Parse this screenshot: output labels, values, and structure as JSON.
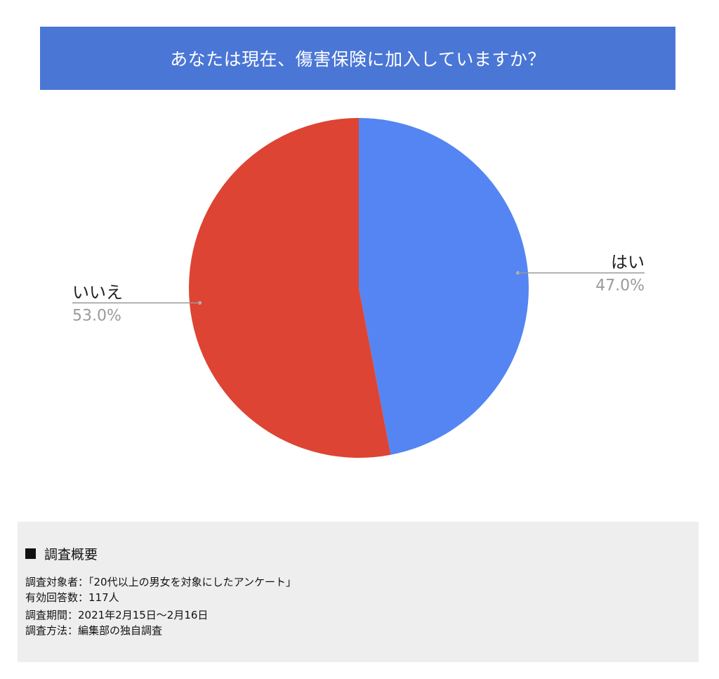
{
  "header": {
    "title": "あなたは現在、傷害保険に加入していますか？"
  },
  "chart_data": {
    "type": "pie",
    "title": "あなたは現在、傷害保険に加入していますか？",
    "slices": [
      {
        "label": "はい",
        "value": 47.0,
        "value_label": "47.0%",
        "color": "#5585f2"
      },
      {
        "label": "いいえ",
        "value": 53.0,
        "value_label": "53.0%",
        "color": "#dd4433"
      }
    ],
    "start_angle": "12 o'clock",
    "direction": "clockwise",
    "legend": "none (labels beside slices)"
  },
  "survey": {
    "heading": "調査概要",
    "lines": [
      "調査対象者：「20代以上の男女を対象にしたアンケート」",
      "有効回答数：117人",
      "調査期間：2021年2月15日〜2月16日",
      "調査方法：編集部の独自調査"
    ]
  }
}
